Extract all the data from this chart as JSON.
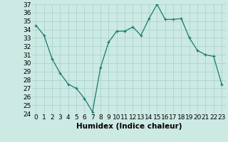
{
  "x": [
    0,
    1,
    2,
    3,
    4,
    5,
    6,
    7,
    8,
    9,
    10,
    11,
    12,
    13,
    14,
    15,
    16,
    17,
    18,
    19,
    20,
    21,
    22,
    23
  ],
  "y": [
    34.5,
    33.3,
    30.5,
    28.8,
    27.5,
    27.0,
    25.8,
    24.2,
    29.5,
    32.5,
    33.8,
    33.8,
    34.3,
    33.3,
    35.3,
    37.0,
    35.2,
    35.2,
    35.3,
    33.0,
    31.5,
    31.0,
    30.8,
    27.5
  ],
  "xlabel": "Humidex (Indice chaleur)",
  "ylim": [
    24,
    37
  ],
  "yticks": [
    24,
    25,
    26,
    27,
    28,
    29,
    30,
    31,
    32,
    33,
    34,
    35,
    36,
    37
  ],
  "xticks": [
    0,
    1,
    2,
    3,
    4,
    5,
    6,
    7,
    8,
    9,
    10,
    11,
    12,
    13,
    14,
    15,
    16,
    17,
    18,
    19,
    20,
    21,
    22,
    23
  ],
  "line_color": "#1a7a6e",
  "marker_color": "#1a7a6e",
  "bg_color": "#cce9e4",
  "grid_color": "#aad4ce",
  "text_color": "#000000",
  "xlabel_fontsize": 7.5,
  "tick_fontsize": 6.5
}
